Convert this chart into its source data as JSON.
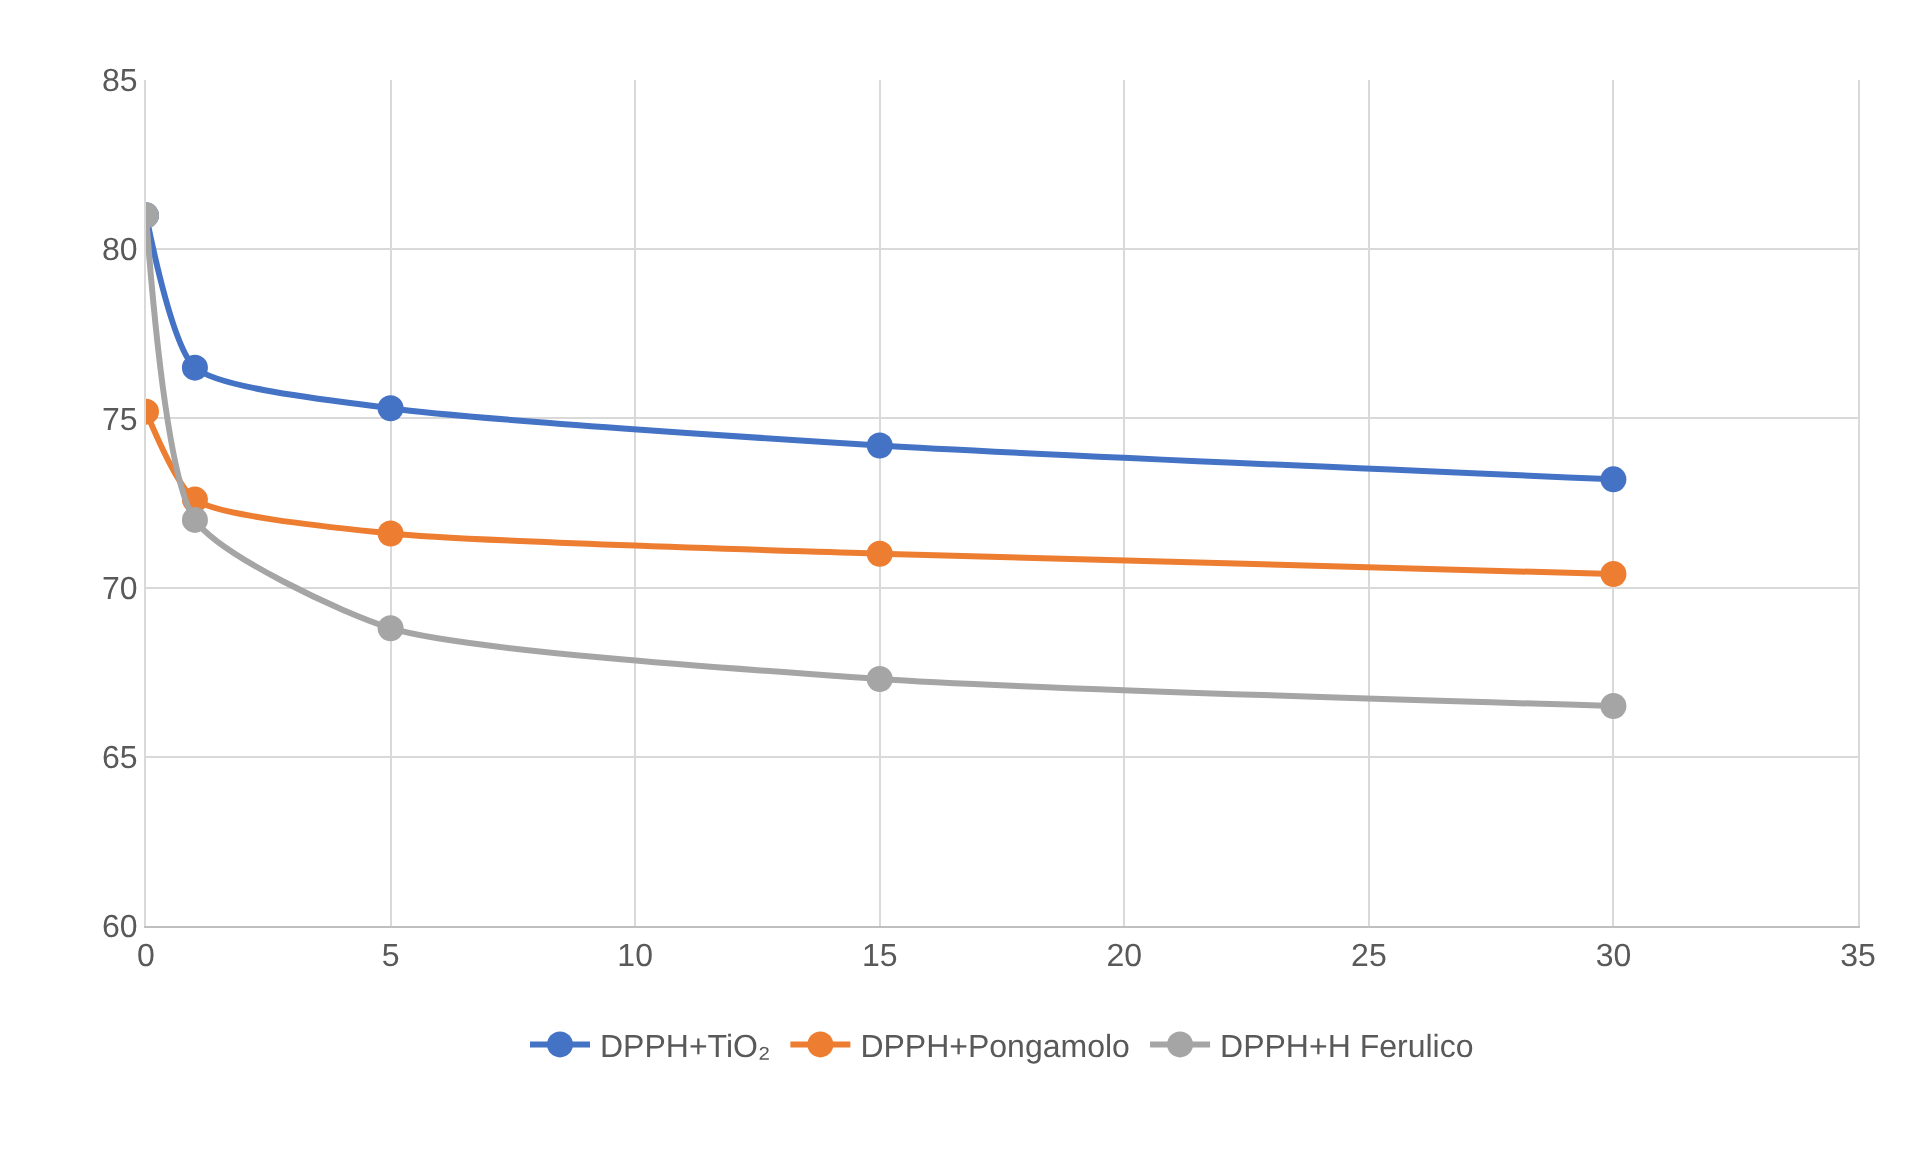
{
  "chart_data": {
    "type": "line",
    "x": [
      0,
      1,
      5,
      15,
      30
    ],
    "series": [
      {
        "name": "DPPH+TiO₂",
        "color": "#4472c4",
        "values": [
          81,
          76.5,
          75.3,
          74.2,
          73.2
        ]
      },
      {
        "name": "DPPH+Pongamolo",
        "color": "#ed7d31",
        "values": [
          75.2,
          72.6,
          71.6,
          71.0,
          70.4
        ]
      },
      {
        "name": "DPPH+H Ferulico",
        "color": "#a5a5a5",
        "values": [
          81,
          72.0,
          68.8,
          67.3,
          66.5
        ]
      }
    ],
    "xlim": [
      0,
      35
    ],
    "xticks": [
      0,
      5,
      10,
      15,
      20,
      25,
      30,
      35
    ],
    "ylim": [
      60,
      85
    ],
    "yticks": [
      60,
      65,
      70,
      75,
      80,
      85
    ],
    "grid": true,
    "legend": "bottom",
    "marker": "circle",
    "line_style": "solid"
  }
}
